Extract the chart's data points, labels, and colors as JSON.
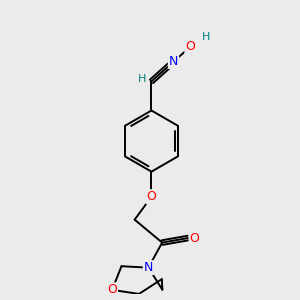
{
  "bg_color": "#ebebeb",
  "atom_colors": {
    "N": "#0000ff",
    "O": "#ff0000",
    "H": "#008080"
  },
  "bond_color": "#000000",
  "bond_width": 1.4,
  "figsize": [
    3.0,
    3.0
  ],
  "dpi": 100
}
